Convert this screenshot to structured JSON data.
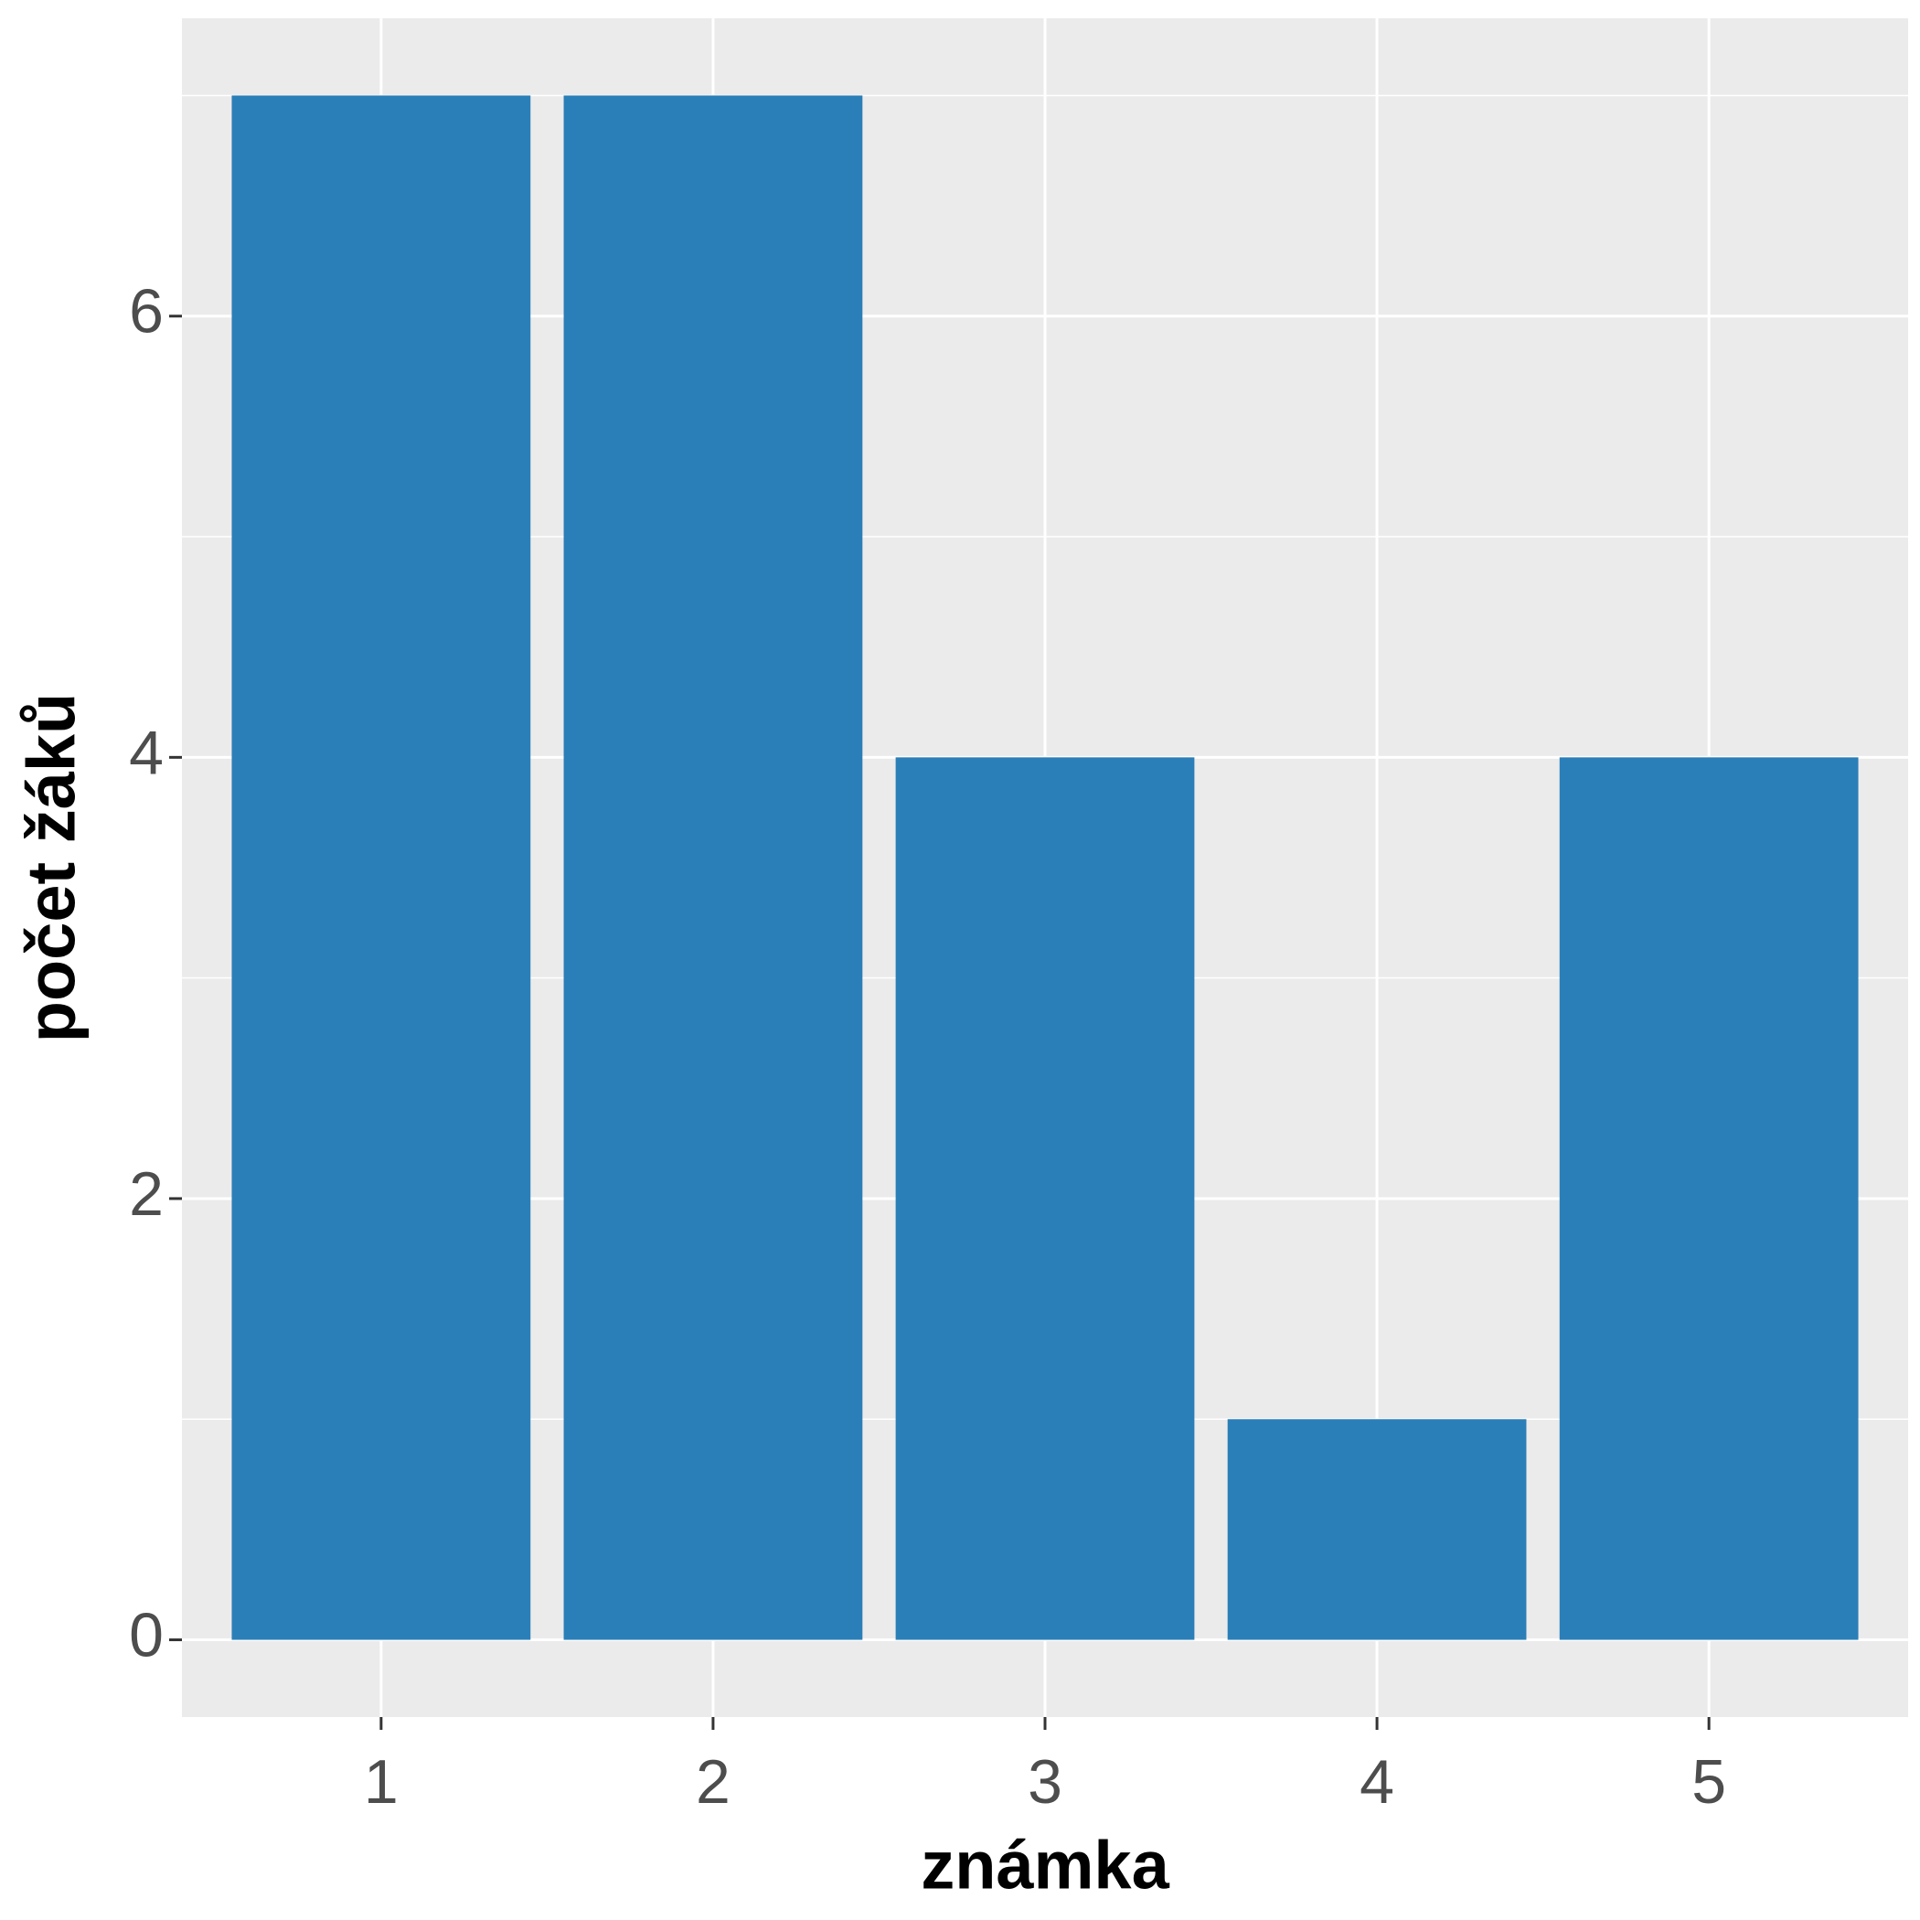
{
  "chart_data": {
    "type": "bar",
    "x_label": "známka",
    "y_label": "počet žáků",
    "categories": [
      "1",
      "2",
      "3",
      "4",
      "5"
    ],
    "values": [
      7,
      7,
      4,
      1,
      4
    ],
    "color": "#2b7fb8",
    "ylim": [
      -0.35,
      7.35
    ],
    "yticks": [
      0,
      2,
      4,
      6
    ],
    "grid": true
  }
}
